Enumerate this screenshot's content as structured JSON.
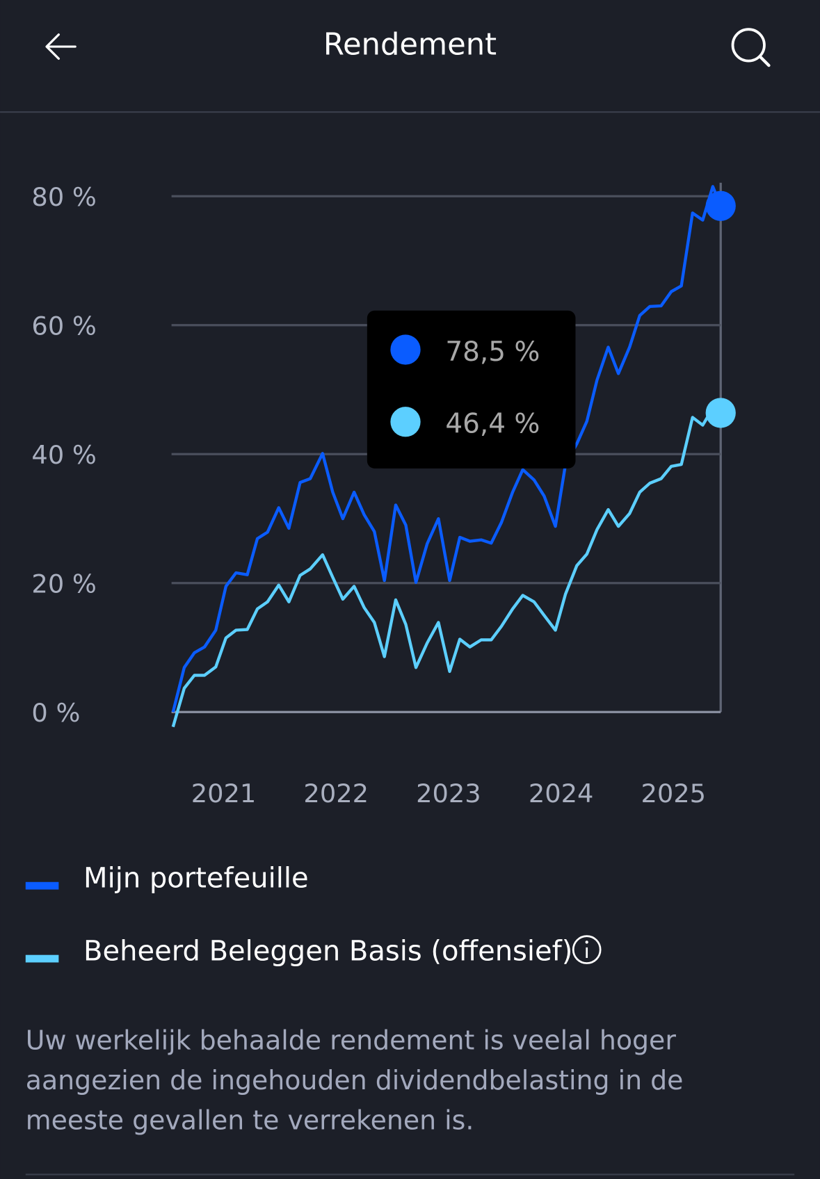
{
  "header": {
    "title": "Rendement"
  },
  "chart_data": {
    "type": "line",
    "x": [
      2020.55,
      2020.65,
      2020.74,
      2020.83,
      2020.93,
      2021.02,
      2021.11,
      2021.21,
      2021.3,
      2021.39,
      2021.49,
      2021.58,
      2021.68,
      2021.77,
      2021.88,
      2021.97,
      2022.06,
      2022.16,
      2022.25,
      2022.34,
      2022.43,
      2022.53,
      2022.62,
      2022.71,
      2022.81,
      2022.91,
      2023.01,
      2023.1,
      2023.19,
      2023.29,
      2023.38,
      2023.47,
      2023.57,
      2023.66,
      2023.76,
      2023.85,
      2023.95,
      2024.04,
      2024.14,
      2024.23,
      2024.32,
      2024.42,
      2024.51,
      2024.61,
      2024.7,
      2024.79,
      2024.89,
      2024.98,
      2025.07,
      2025.17,
      2025.26,
      2025.35,
      2025.42
    ],
    "series": [
      {
        "name": "Mijn portefeuille",
        "color": "#0a5cff",
        "values": [
          0,
          6.9,
          9.2,
          10.1,
          12.7,
          19.5,
          21.6,
          21.3,
          26.9,
          27.9,
          31.7,
          28.5,
          35.6,
          36.2,
          40.1,
          34.1,
          30.0,
          34.1,
          30.6,
          28.0,
          20.4,
          32.1,
          29.0,
          20.1,
          26.1,
          30.0,
          20.4,
          27.1,
          26.5,
          26.7,
          26.2,
          29.4,
          34.1,
          37.6,
          36.0,
          33.5,
          28.8,
          38.4,
          41.6,
          45.1,
          51.5,
          56.6,
          52.5,
          56.6,
          61.5,
          62.9,
          63.0,
          65.2,
          66.1,
          77.4,
          76.3,
          81.5,
          78.5
        ]
      },
      {
        "name": "Beheerd Beleggen Basis (offensief)",
        "color": "#5ccfff",
        "values": [
          -2.3,
          3.7,
          5.7,
          5.7,
          7.0,
          11.5,
          12.7,
          12.8,
          16.0,
          17.1,
          19.7,
          17.1,
          21.2,
          22.2,
          24.4,
          20.9,
          17.5,
          19.5,
          16.2,
          13.9,
          8.6,
          17.4,
          13.6,
          6.9,
          10.7,
          13.9,
          6.3,
          11.3,
          10.1,
          11.2,
          11.2,
          13.3,
          16.0,
          18.1,
          17.1,
          15.0,
          12.7,
          18.3,
          22.7,
          24.5,
          28.3,
          31.4,
          28.8,
          30.8,
          34.1,
          35.5,
          36.2,
          38.1,
          38.4,
          45.7,
          44.5,
          47.1,
          46.4
        ]
      }
    ],
    "xlim": [
      2020.55,
      2025.42
    ],
    "xticks": [
      2021,
      2022,
      2023,
      2024,
      2025
    ],
    "ylim": [
      0,
      80
    ],
    "yticks": [
      {
        "value": 0,
        "label": "0 %"
      },
      {
        "value": 20,
        "label": "20 %"
      },
      {
        "value": 40,
        "label": "40 %"
      },
      {
        "value": 60,
        "label": "60 %"
      },
      {
        "value": 80,
        "label": "80 %"
      }
    ],
    "grid": true,
    "tooltip": [
      {
        "value": 78.5,
        "label": "78,5 %"
      },
      {
        "value": 46.4,
        "label": "46,4 %"
      }
    ]
  },
  "footnote": [
    "Uw werkelijk behaalde rendement is veelal hoger",
    "aangezien de ingehouden dividendbelasting in de",
    "meeste gevallen te verrekenen is."
  ]
}
